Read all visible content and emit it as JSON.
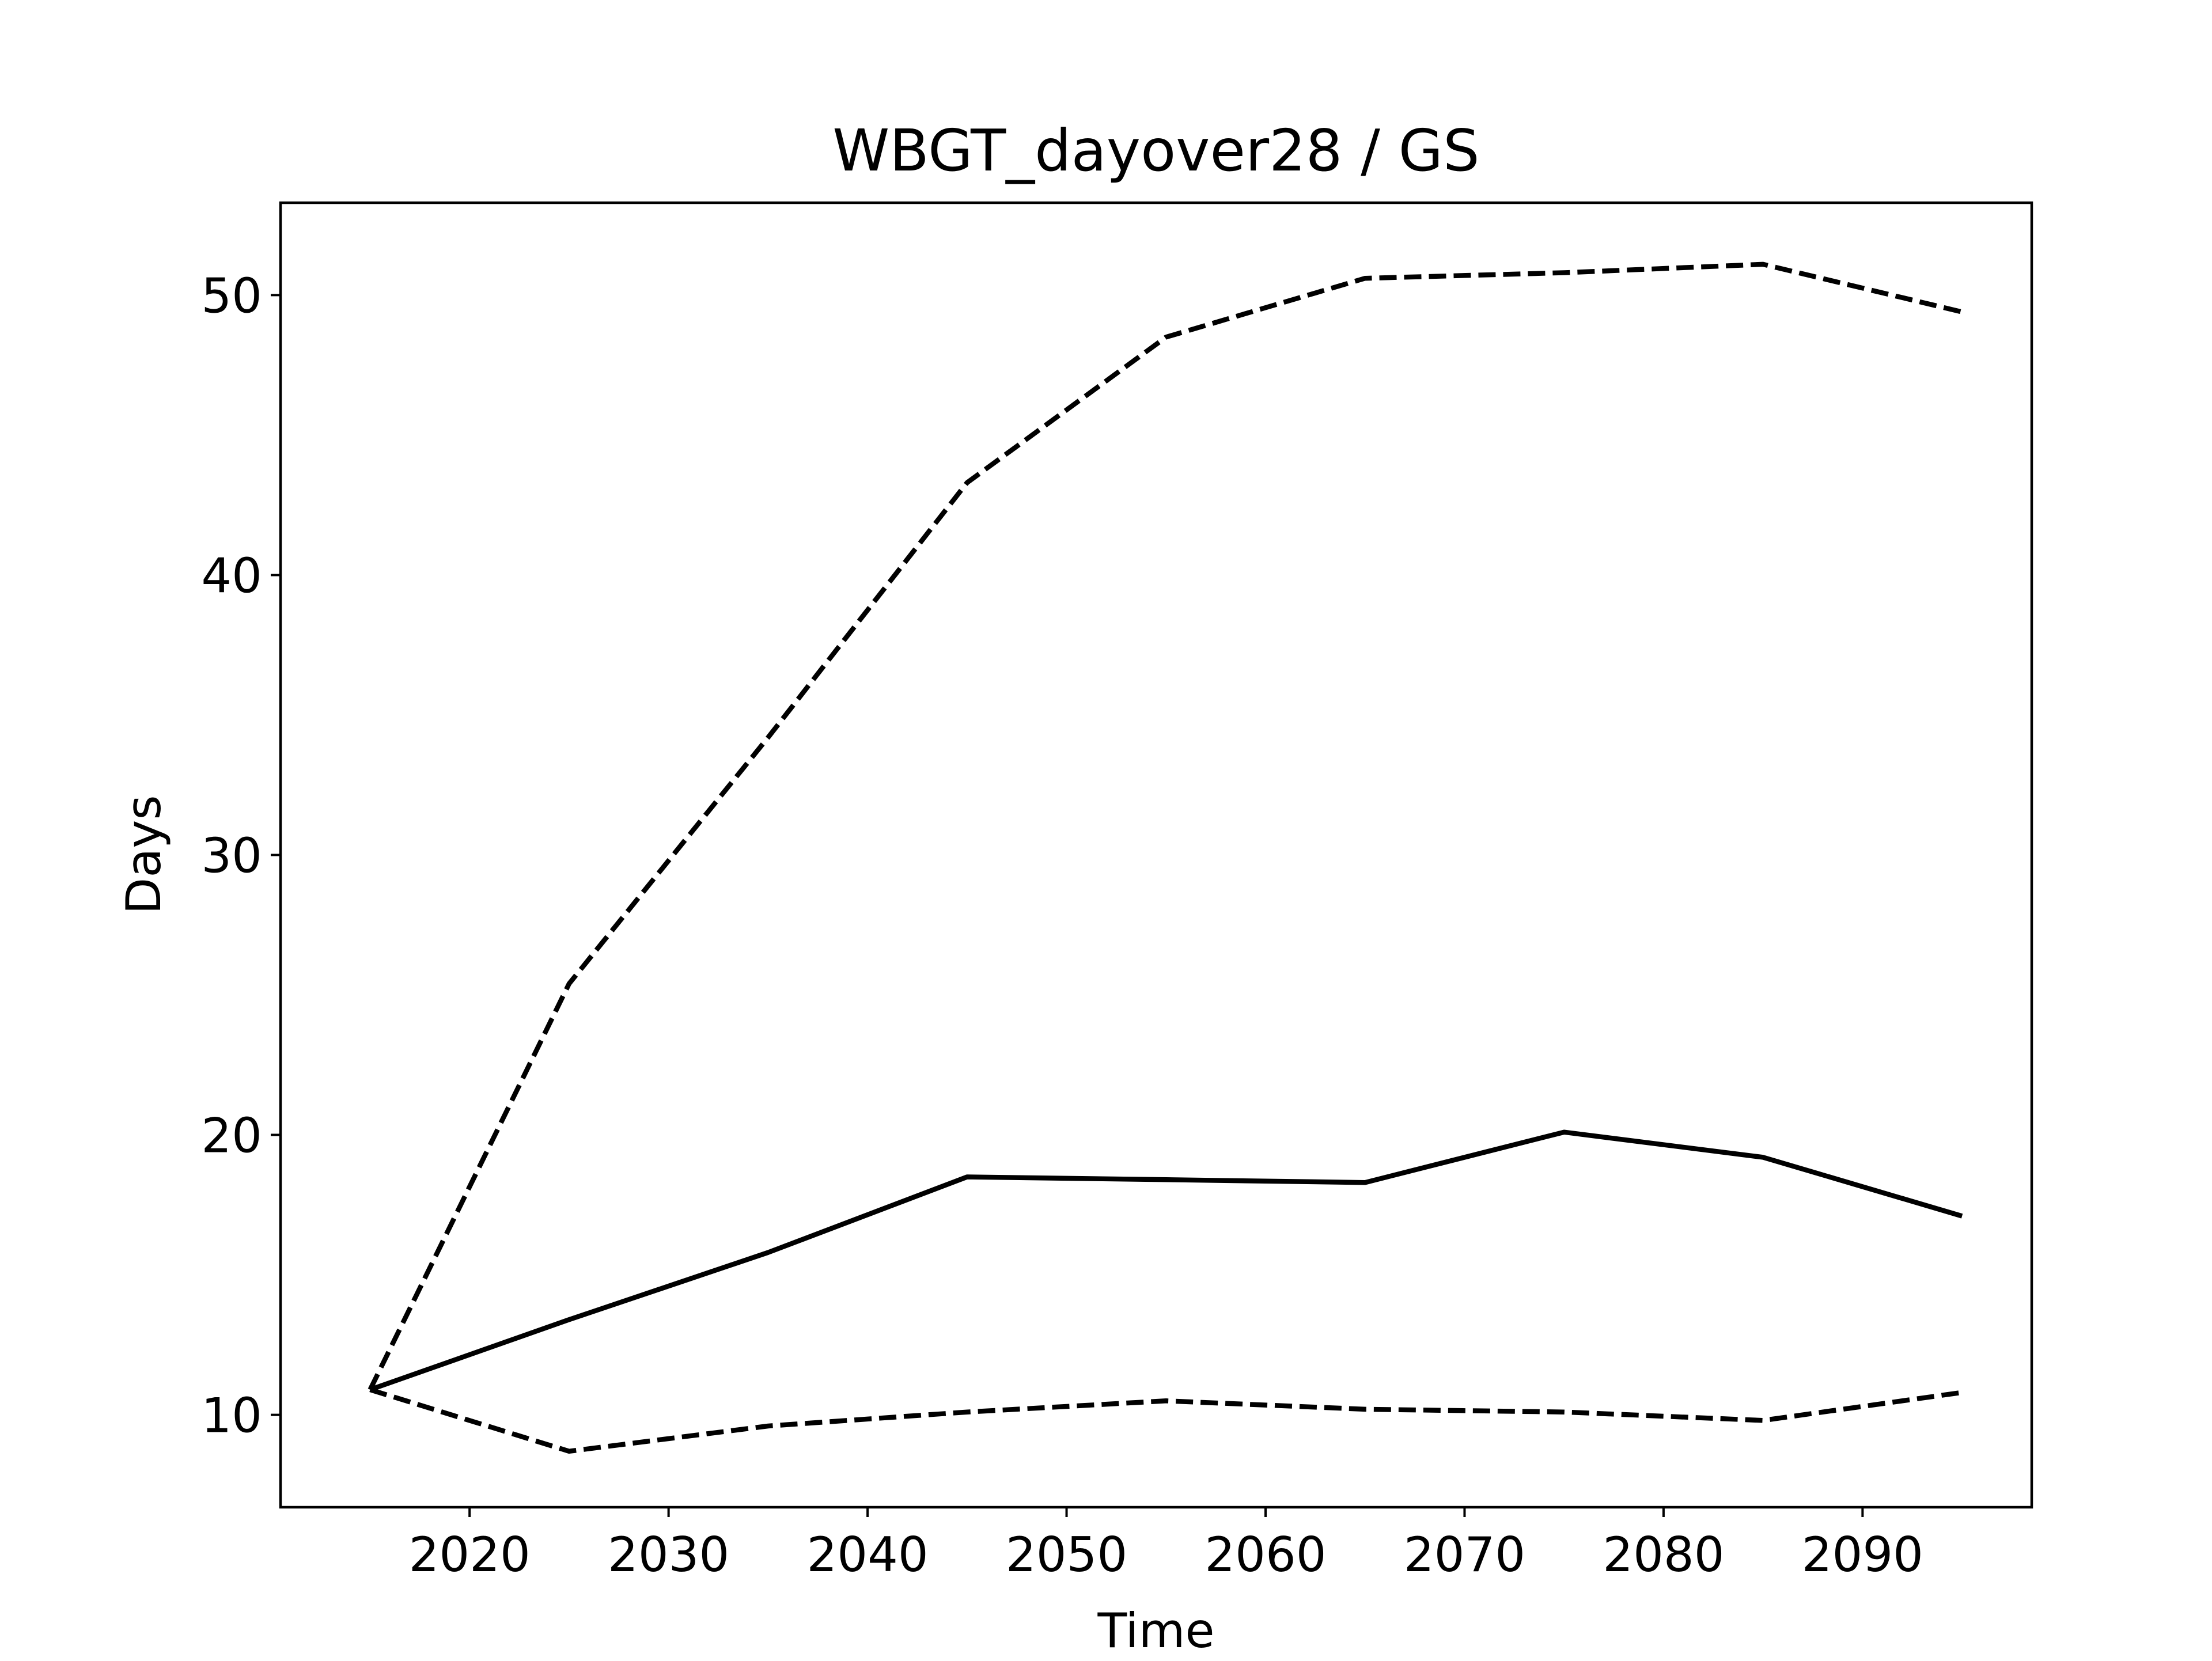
{
  "chart_data": {
    "type": "line",
    "title": "WBGT_dayover28 / GS",
    "xlabel": "Time",
    "ylabel": "Days",
    "xlim": [
      2010.5,
      2098.5
    ],
    "ylim": [
      6.7,
      53.3
    ],
    "xticks": [
      2020,
      2030,
      2040,
      2050,
      2060,
      2070,
      2080,
      2090
    ],
    "yticks": [
      10,
      20,
      30,
      40,
      50
    ],
    "grid": false,
    "x": [
      2015,
      2025,
      2035,
      2045,
      2055,
      2065,
      2075,
      2085,
      2095
    ],
    "series": [
      {
        "style": "solid",
        "color": "#000000",
        "values": [
          10.9,
          13.4,
          15.8,
          18.5,
          18.4,
          18.3,
          20.1,
          19.2,
          17.1
        ]
      },
      {
        "style": "dashed",
        "color": "#000000",
        "values": [
          10.9,
          25.4,
          34.2,
          43.3,
          48.5,
          50.6,
          50.8,
          51.1,
          49.4
        ]
      },
      {
        "style": "dashed",
        "color": "#000000",
        "values": [
          10.9,
          8.7,
          9.6,
          10.1,
          10.5,
          10.2,
          10.1,
          9.8,
          10.8
        ]
      }
    ]
  }
}
